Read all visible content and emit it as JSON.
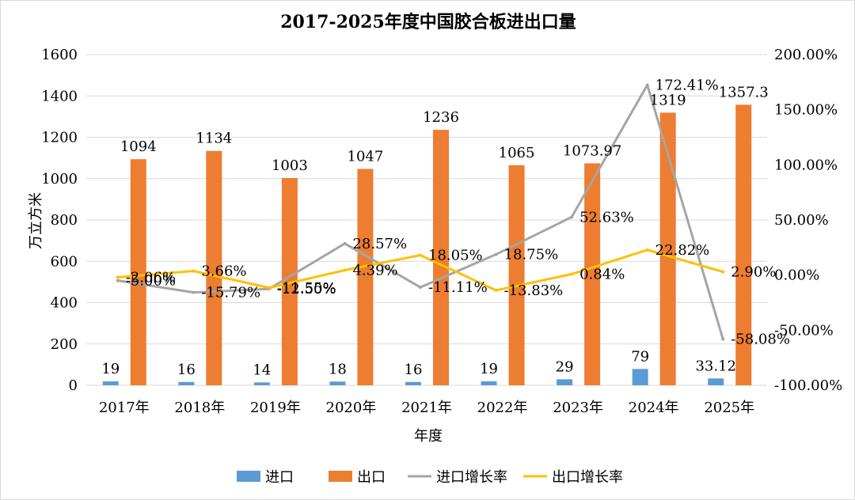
{
  "chart_data": {
    "type": "bar",
    "title": "2017-2025年度中国胶合板进出口量",
    "xlabel": "年度",
    "ylabel": "万立方米",
    "categories": [
      "2017年",
      "2018年",
      "2019年",
      "2020年",
      "2021年",
      "2022年",
      "2023年",
      "2024年",
      "2025年"
    ],
    "ylim": [
      0,
      1600
    ],
    "y_ticks": [
      "0",
      "200",
      "400",
      "600",
      "800",
      "1000",
      "1200",
      "1400",
      "1600"
    ],
    "y2lim": [
      -100,
      200
    ],
    "y2_ticks": [
      "-100.00%",
      "-50.00%",
      "0.00%",
      "50.00%",
      "100.00%",
      "150.00%",
      "200.00%"
    ],
    "grid": true,
    "legend_position": "bottom",
    "series": [
      {
        "name": "进口",
        "type": "bar",
        "axis": "left",
        "color": "#5b9bd5",
        "values": [
          19,
          16,
          14,
          18,
          16,
          19,
          29,
          79,
          33.12
        ],
        "labels": [
          "19",
          "16",
          "14",
          "18",
          "16",
          "19",
          "29",
          "79",
          "33.12"
        ]
      },
      {
        "name": "出口",
        "type": "bar",
        "axis": "left",
        "color": "#ed7d31",
        "values": [
          1094,
          1134,
          1003,
          1047,
          1236,
          1065,
          1073.97,
          1319,
          1357.3
        ],
        "labels": [
          "1094",
          "1134",
          "1003",
          "1047",
          "1236",
          "1065",
          "1073.97",
          "1319",
          "1357.3"
        ]
      },
      {
        "name": "进口增长率",
        "type": "line",
        "axis": "right",
        "color": "#a5a5a5",
        "values": [
          -5.0,
          -15.79,
          -12.5,
          28.57,
          -11.11,
          18.75,
          52.63,
          172.41,
          -58.08
        ],
        "labels": [
          "-5.00%",
          "-15.79%",
          "-12.50%",
          "28.57%",
          "-11.11%",
          "18.75%",
          "52.63%",
          "172.41%",
          "-58.08%"
        ]
      },
      {
        "name": "出口增长率",
        "type": "line",
        "axis": "right",
        "color": "#ffc000",
        "values": [
          -2.06,
          3.66,
          -11.55,
          4.39,
          18.05,
          -13.83,
          0.84,
          22.82,
          2.9
        ],
        "labels": [
          "-2.06%",
          "3.66%",
          "-11.55%",
          "4.39%",
          "18.05%",
          "-13.83%",
          "0.84%",
          "22.82%",
          "2.90%"
        ]
      }
    ]
  }
}
